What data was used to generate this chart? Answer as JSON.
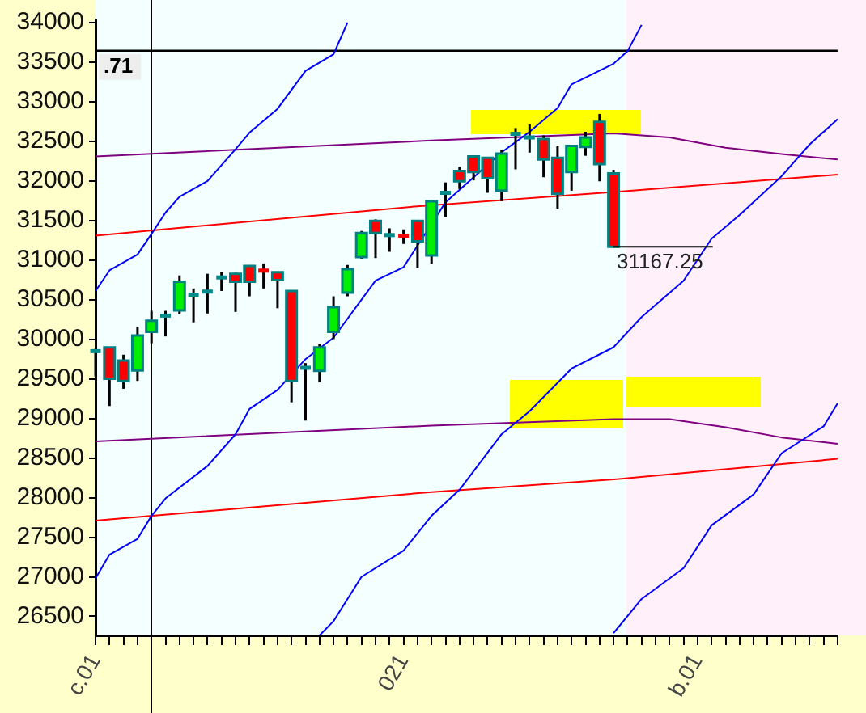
{
  "chart_data": {
    "type": "candlestick",
    "categories": [
      "c.01",
      null,
      null,
      null,
      null,
      null,
      null,
      null,
      null,
      null,
      null,
      null,
      null,
      null,
      null,
      null,
      null,
      null,
      null,
      null,
      null,
      null,
      "021",
      null,
      null,
      null,
      null,
      null,
      null,
      null,
      null,
      null,
      null,
      null,
      null,
      null,
      null,
      null,
      null,
      null,
      null,
      null,
      null,
      "b.01",
      null,
      null,
      null,
      null,
      null,
      null,
      null,
      null,
      null,
      null
    ],
    "ohlc": [
      [
        29850,
        29880,
        29530,
        29850
      ],
      [
        29897,
        29897,
        29157,
        29502
      ],
      [
        29731,
        29805,
        29375,
        29474
      ],
      [
        29607,
        30161,
        29474,
        30048
      ],
      [
        30095,
        30359,
        29949,
        30234
      ],
      [
        30299,
        30359,
        30036,
        30299
      ],
      [
        30365,
        30807,
        30313,
        30728
      ],
      [
        30563,
        30642,
        30214,
        30563
      ],
      [
        30602,
        30827,
        30326,
        30602
      ],
      [
        30781,
        30853,
        30610,
        30781
      ],
      [
        30827,
        30840,
        30346,
        30728
      ],
      [
        30926,
        30926,
        30543,
        30728
      ],
      [
        30867,
        30958,
        30642,
        30820
      ],
      [
        30847,
        30847,
        30392,
        30748
      ],
      [
        30610,
        30610,
        29204,
        29474
      ],
      [
        29640,
        29699,
        28973,
        29640
      ],
      [
        29600,
        29937,
        29455,
        29897
      ],
      [
        30095,
        30543,
        30002,
        30405
      ],
      [
        30589,
        30939,
        30543,
        30886
      ],
      [
        31038,
        31368,
        31019,
        31342
      ],
      [
        31494,
        31514,
        31026,
        31342
      ],
      [
        31316,
        31401,
        31105,
        31316
      ],
      [
        31309,
        31388,
        31204,
        31263
      ],
      [
        31494,
        31494,
        30899,
        31237
      ],
      [
        31058,
        31757,
        30952,
        31744
      ],
      [
        31850,
        31981,
        31546,
        31850
      ],
      [
        32126,
        32179,
        31897,
        31995
      ],
      [
        32310,
        32310,
        32007,
        32113
      ],
      [
        32292,
        32292,
        31850,
        32035
      ],
      [
        31877,
        32390,
        31744,
        32344
      ],
      [
        32595,
        32668,
        32146,
        32595
      ],
      [
        32549,
        32714,
        32358,
        32549
      ],
      [
        32528,
        32575,
        32047,
        32271
      ],
      [
        32292,
        32437,
        31651,
        31837
      ],
      [
        32113,
        32443,
        31877,
        32443
      ],
      [
        32430,
        32621,
        32318,
        32549
      ],
      [
        32747,
        32846,
        31995,
        32213
      ],
      [
        32094,
        32140,
        31167.25,
        31167.25
      ],
      null,
      null,
      null,
      null,
      null,
      null,
      null,
      null,
      null,
      null,
      null,
      null,
      null,
      null,
      null,
      null
    ],
    "colors": [
      "#008b8b",
      "#ff0000",
      "#ff0000",
      "#00ee00",
      "#00ee00",
      "#008b8b",
      "#00ee00",
      "#008b8b",
      "#008b8b",
      "#008b8b",
      "#ff0000",
      "#ff0000",
      "#ff0000",
      "#ff0000",
      "#ff0000",
      "#008b8b",
      "#00ee00",
      "#00ee00",
      "#00ee00",
      "#00ee00",
      "#ff0000",
      "#008b8b",
      "#ff0000",
      "#ff0000",
      "#00ee00",
      "#008b8b",
      "#ff0000",
      "#ff0000",
      "#ff0000",
      "#00ee00",
      "#008b8b",
      "#008b8b",
      "#ff0000",
      "#ff0000",
      "#00ee00",
      "#00ee00",
      "#ff0000",
      "#ff0000",
      null,
      null,
      null,
      null,
      null,
      null,
      null,
      null,
      null,
      null,
      null,
      null,
      null,
      null,
      null,
      null
    ],
    "series": [
      {
        "type": "line",
        "color": "#0000ff",
        "values": [
          30610,
          30870,
          null,
          31070,
          31330,
          31600,
          31800,
          null,
          32000,
          null,
          32400,
          32610,
          null,
          32910,
          null,
          33390,
          null,
          33600,
          34000,
          null,
          null,
          null,
          null,
          null,
          null,
          null,
          null,
          null,
          null,
          null,
          null,
          null,
          null,
          null,
          null,
          null,
          null,
          null,
          null,
          null,
          null,
          null,
          null,
          null,
          null,
          null,
          null,
          null,
          null,
          null,
          null,
          null,
          null,
          null
        ]
      },
      {
        "type": "line",
        "color": "#0000ff",
        "values": [
          26980,
          27280,
          null,
          27480,
          27770,
          27990,
          null,
          null,
          28400,
          null,
          28800,
          29120,
          null,
          29360,
          null,
          29750,
          null,
          30020,
          null,
          null,
          30740,
          null,
          30910,
          null,
          null,
          31730,
          null,
          null,
          null,
          32360,
          null,
          32620,
          null,
          32920,
          33220,
          null,
          null,
          33480,
          33640,
          33970,
          null,
          null,
          null,
          null,
          null,
          null,
          null,
          null,
          null,
          null,
          null,
          null,
          null,
          null
        ]
      },
      {
        "type": "line",
        "color": "#0000ff",
        "values": [
          null,
          null,
          null,
          null,
          null,
          null,
          null,
          null,
          null,
          null,
          null,
          null,
          null,
          null,
          null,
          null,
          26260,
          26440,
          null,
          27000,
          null,
          null,
          27330,
          null,
          27770,
          null,
          28100,
          null,
          null,
          28800,
          null,
          29090,
          null,
          null,
          29630,
          null,
          null,
          29900,
          null,
          30280,
          null,
          null,
          30740,
          null,
          31270,
          null,
          31570,
          null,
          null,
          32060,
          null,
          32460,
          null,
          32780
        ]
      },
      {
        "type": "line",
        "color": "#0000ff",
        "values": [
          null,
          null,
          null,
          null,
          null,
          null,
          null,
          null,
          null,
          null,
          null,
          null,
          null,
          null,
          null,
          null,
          null,
          null,
          null,
          null,
          null,
          null,
          null,
          null,
          null,
          null,
          null,
          null,
          null,
          null,
          null,
          null,
          null,
          null,
          null,
          null,
          null,
          26290,
          null,
          26720,
          null,
          null,
          27110,
          null,
          27650,
          null,
          null,
          28040,
          null,
          28560,
          null,
          null,
          28900,
          29190
        ]
      },
      {
        "type": "line",
        "color": "#ff0000",
        "values": [
          31310,
          null,
          null,
          null,
          null,
          null,
          null,
          null,
          null,
          null,
          null,
          null,
          null,
          null,
          null,
          null,
          null,
          null,
          null,
          null,
          null,
          null,
          null,
          31680,
          null,
          null,
          null,
          null,
          null,
          null,
          null,
          null,
          null,
          null,
          null,
          null,
          null,
          31860,
          null,
          null,
          null,
          null,
          null,
          null,
          null,
          null,
          null,
          null,
          null,
          null,
          null,
          null,
          null,
          32080
        ]
      },
      {
        "type": "line",
        "color": "#ff0000",
        "values": [
          27710,
          null,
          null,
          null,
          null,
          null,
          null,
          null,
          null,
          null,
          null,
          null,
          null,
          null,
          null,
          null,
          null,
          null,
          null,
          null,
          null,
          null,
          null,
          null,
          28070,
          null,
          null,
          null,
          null,
          null,
          null,
          null,
          null,
          null,
          null,
          null,
          null,
          28230,
          null,
          null,
          null,
          null,
          null,
          null,
          null,
          null,
          null,
          null,
          null,
          null,
          null,
          null,
          null,
          28490
        ]
      },
      {
        "type": "line",
        "color": "#800080",
        "values": [
          32310,
          null,
          null,
          null,
          null,
          null,
          null,
          null,
          null,
          null,
          null,
          null,
          null,
          null,
          null,
          null,
          null,
          null,
          null,
          null,
          null,
          null,
          null,
          null,
          32510,
          null,
          null,
          null,
          null,
          null,
          null,
          null,
          null,
          null,
          null,
          null,
          null,
          32600,
          null,
          null,
          null,
          32550,
          null,
          null,
          null,
          32420,
          null,
          null,
          null,
          32340,
          null,
          null,
          null,
          32270
        ]
      },
      {
        "type": "line",
        "color": "#800080",
        "values": [
          28710,
          null,
          null,
          null,
          null,
          null,
          null,
          null,
          null,
          null,
          null,
          null,
          null,
          null,
          null,
          null,
          null,
          null,
          null,
          null,
          null,
          null,
          null,
          null,
          28910,
          null,
          null,
          null,
          null,
          null,
          null,
          null,
          null,
          null,
          null,
          null,
          null,
          28990,
          null,
          null,
          null,
          28990,
          null,
          null,
          null,
          28890,
          null,
          null,
          null,
          28760,
          null,
          null,
          null,
          28680
        ]
      }
    ],
    "ylim": [
      26260,
      34040
    ],
    "yticks": [
      26500,
      27000,
      27500,
      28000,
      28500,
      29000,
      29500,
      30000,
      30500,
      31000,
      31500,
      32000,
      32500,
      33000,
      33500,
      34000
    ],
    "ref_lines": [
      {
        "axis": "y",
        "value": 33643.71,
        "color": "#000000"
      }
    ],
    "annotations": [
      "31167.25",
      ".71"
    ],
    "marker": "none",
    "grid": false,
    "legend": false
  }
}
